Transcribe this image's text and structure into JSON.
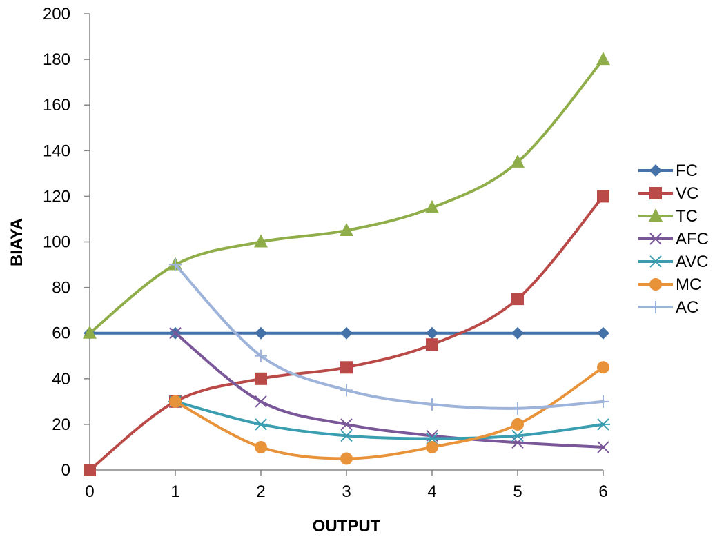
{
  "chart_data": {
    "type": "line",
    "title": "",
    "xlabel": "OUTPUT",
    "ylabel": "BIAYA",
    "x": [
      0,
      1,
      2,
      3,
      4,
      5,
      6
    ],
    "xlim": [
      0,
      6
    ],
    "ylim": [
      0,
      200
    ],
    "yticks": [
      0,
      20,
      40,
      60,
      80,
      100,
      120,
      140,
      160,
      180,
      200
    ],
    "grid": false,
    "smooth": true,
    "legend_position": "right",
    "series": [
      {
        "name": "FC",
        "color": "#4472A8",
        "marker": "diamond",
        "x": [
          0,
          1,
          2,
          3,
          4,
          5,
          6
        ],
        "values": [
          60,
          60,
          60,
          60,
          60,
          60,
          60
        ]
      },
      {
        "name": "VC",
        "color": "#B94A48",
        "marker": "square",
        "x": [
          0,
          1,
          2,
          3,
          4,
          5,
          6
        ],
        "values": [
          0,
          30,
          40,
          45,
          55,
          75,
          120
        ]
      },
      {
        "name": "TC",
        "color": "#8FAE4A",
        "marker": "triangle",
        "x": [
          0,
          1,
          2,
          3,
          4,
          5,
          6
        ],
        "values": [
          60,
          90,
          100,
          105,
          115,
          135,
          180
        ]
      },
      {
        "name": "AFC",
        "color": "#7A5799",
        "marker": "x",
        "x": [
          1,
          2,
          3,
          4,
          5,
          6
        ],
        "values": [
          60,
          30,
          20,
          15,
          12,
          10
        ]
      },
      {
        "name": "AVC",
        "color": "#3A9DB0",
        "marker": "asterisk",
        "x": [
          1,
          2,
          3,
          4,
          5,
          6
        ],
        "values": [
          30,
          20,
          15,
          13.75,
          15,
          20
        ]
      },
      {
        "name": "MC",
        "color": "#E8923A",
        "marker": "circle",
        "x": [
          1,
          2,
          3,
          4,
          5,
          6
        ],
        "values": [
          30,
          10,
          5,
          10,
          20,
          45
        ]
      },
      {
        "name": "AC",
        "color": "#9DB3D9",
        "marker": "plus",
        "x": [
          1,
          2,
          3,
          4,
          5,
          6
        ],
        "values": [
          90,
          50,
          35,
          28.75,
          27,
          30
        ]
      }
    ]
  }
}
